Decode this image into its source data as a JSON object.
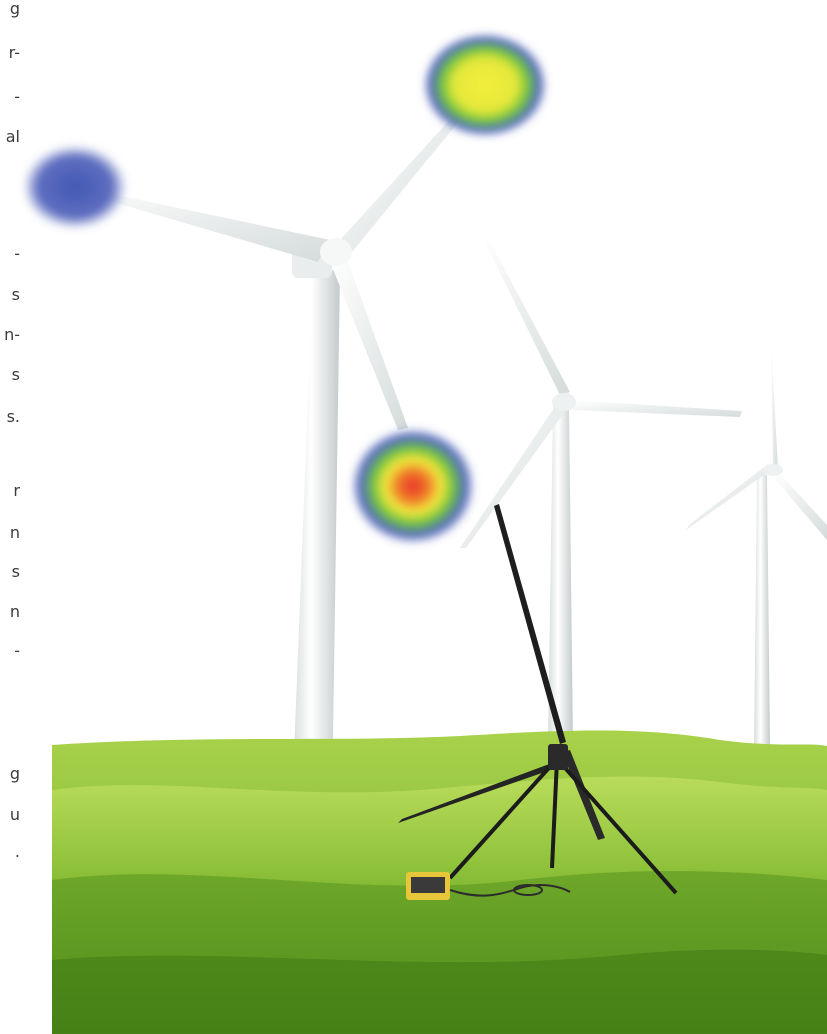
{
  "text_fragments": [
    "g",
    "r-",
    "-",
    "al",
    "-",
    "s",
    "n-",
    "s",
    "s.",
    "r",
    "n",
    "s",
    "n",
    "-",
    "g",
    "u",
    "."
  ],
  "colors": {
    "sky": "#ffffff",
    "grass_light": "#9fcf3a",
    "grass_dark": "#3f7a14",
    "turbine_white": "#f2f4f3",
    "turbine_shade": "#c9cfcf",
    "heat_red": "#e8312a",
    "heat_yellow": "#f3e93c",
    "heat_green": "#6dc23f",
    "heat_blue": "#3f54b3",
    "equipment_dark": "#1e1e1e",
    "equipment_case": "#e7c63a"
  },
  "heat_spots": [
    {
      "name": "heat-spot-top-blade-tip",
      "level": "high",
      "peak": "yellow"
    },
    {
      "name": "heat-spot-left-blade-tip",
      "level": "low",
      "peak": "blue"
    },
    {
      "name": "heat-spot-lower-blade",
      "level": "highest",
      "peak": "red"
    }
  ],
  "icons": [
    "wind-turbine-icon",
    "acoustic-camera-icon",
    "tripod-icon",
    "data-recorder-icon"
  ]
}
